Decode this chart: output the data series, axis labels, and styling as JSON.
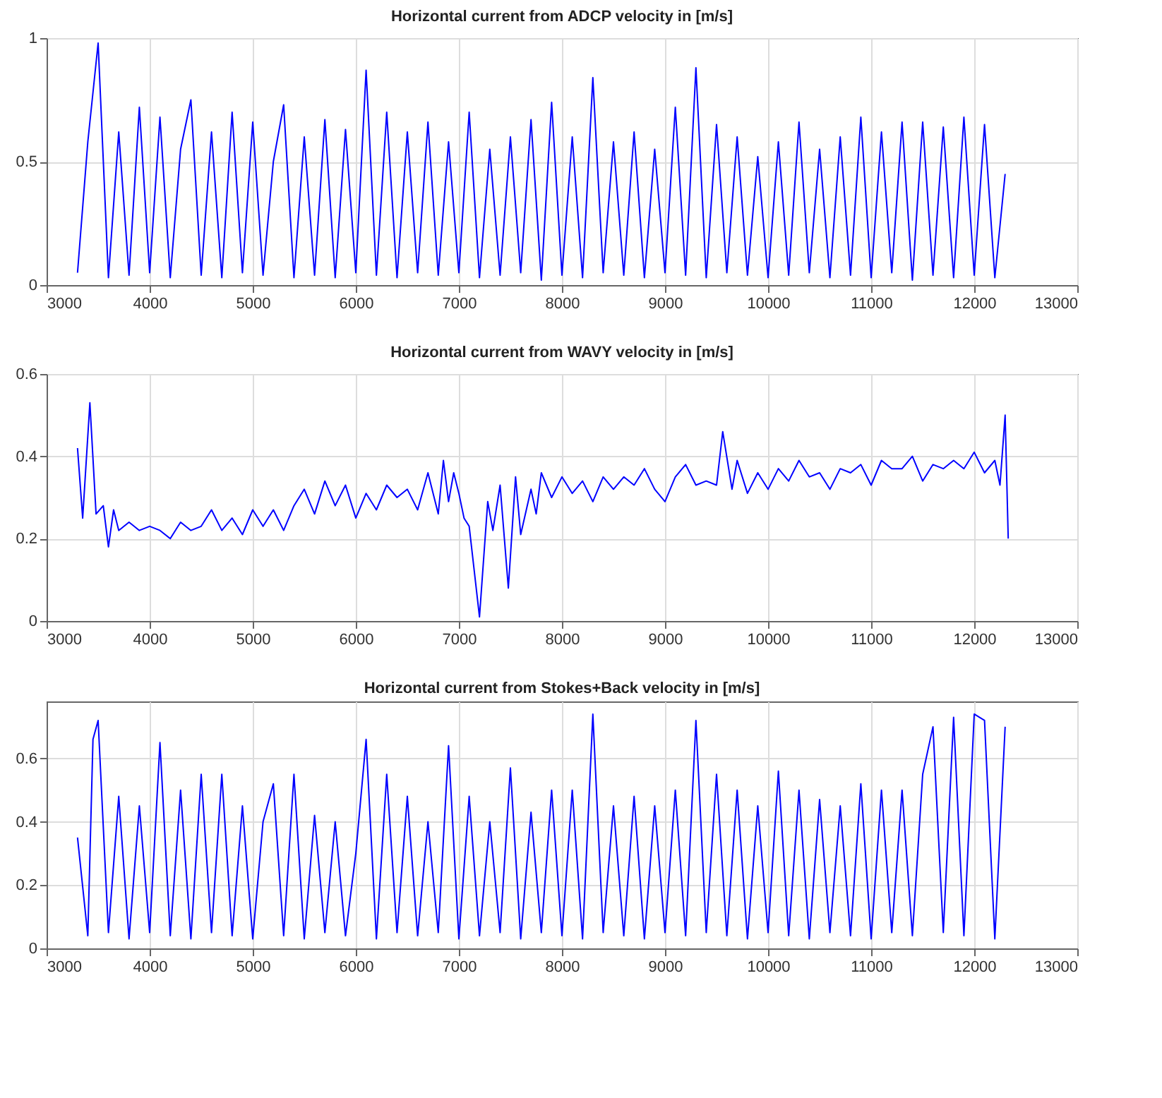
{
  "chart_data": [
    {
      "type": "line",
      "title": "Horizontal current from ADCP velocity in [m/s]",
      "x": [
        3300,
        3400,
        3500,
        3600,
        3700,
        3800,
        3900,
        4000,
        4100,
        4200,
        4300,
        4400,
        4500,
        4600,
        4700,
        4800,
        4900,
        5000,
        5100,
        5200,
        5300,
        5400,
        5500,
        5600,
        5700,
        5800,
        5900,
        6000,
        6100,
        6200,
        6300,
        6400,
        6500,
        6600,
        6700,
        6800,
        6900,
        7000,
        7100,
        7200,
        7300,
        7400,
        7500,
        7600,
        7700,
        7800,
        7900,
        8000,
        8100,
        8200,
        8300,
        8400,
        8500,
        8600,
        8700,
        8800,
        8900,
        9000,
        9100,
        9200,
        9300,
        9400,
        9500,
        9600,
        9700,
        9800,
        9900,
        10000,
        10100,
        10200,
        10300,
        10400,
        10500,
        10600,
        10700,
        10800,
        10900,
        11000,
        11100,
        11200,
        11300,
        11400,
        11500,
        11600,
        11700,
        11800,
        11900,
        12000,
        12100,
        12200,
        12300
      ],
      "series": [
        {
          "color": "#0000ff",
          "values": [
            0.05,
            0.58,
            0.98,
            0.03,
            0.62,
            0.04,
            0.72,
            0.05,
            0.68,
            0.03,
            0.55,
            0.75,
            0.04,
            0.62,
            0.03,
            0.7,
            0.05,
            0.66,
            0.04,
            0.5,
            0.73,
            0.03,
            0.6,
            0.04,
            0.67,
            0.03,
            0.63,
            0.05,
            0.87,
            0.04,
            0.7,
            0.03,
            0.62,
            0.05,
            0.66,
            0.04,
            0.58,
            0.05,
            0.7,
            0.03,
            0.55,
            0.04,
            0.6,
            0.05,
            0.67,
            0.02,
            0.74,
            0.04,
            0.6,
            0.03,
            0.84,
            0.05,
            0.58,
            0.04,
            0.62,
            0.03,
            0.55,
            0.05,
            0.72,
            0.04,
            0.88,
            0.03,
            0.65,
            0.05,
            0.6,
            0.04,
            0.52,
            0.03,
            0.58,
            0.04,
            0.66,
            0.05,
            0.55,
            0.03,
            0.6,
            0.04,
            0.68,
            0.03,
            0.62,
            0.05,
            0.66,
            0.02,
            0.66,
            0.04,
            0.64,
            0.03,
            0.68,
            0.04,
            0.65,
            0.03,
            0.45
          ]
        }
      ],
      "xlim": [
        3000,
        13000
      ],
      "xticks": [
        3000,
        4000,
        5000,
        6000,
        7000,
        8000,
        9000,
        10000,
        11000,
        12000,
        13000
      ],
      "ylim": [
        0,
        1
      ],
      "yticks": [
        0,
        0.5,
        1
      ],
      "grid": true
    },
    {
      "type": "line",
      "title": "Horizontal current from WAVY velocity in [m/s]",
      "x": [
        3300,
        3350,
        3420,
        3480,
        3550,
        3600,
        3650,
        3700,
        3800,
        3900,
        4000,
        4100,
        4200,
        4300,
        4400,
        4500,
        4600,
        4700,
        4800,
        4900,
        5000,
        5100,
        5200,
        5300,
        5400,
        5500,
        5600,
        5700,
        5800,
        5900,
        6000,
        6100,
        6200,
        6300,
        6400,
        6500,
        6600,
        6700,
        6800,
        6850,
        6900,
        6950,
        7000,
        7050,
        7100,
        7200,
        7280,
        7330,
        7400,
        7480,
        7550,
        7600,
        7700,
        7750,
        7800,
        7900,
        8000,
        8100,
        8200,
        8300,
        8400,
        8500,
        8600,
        8700,
        8800,
        8900,
        9000,
        9100,
        9200,
        9300,
        9400,
        9500,
        9560,
        9650,
        9700,
        9800,
        9900,
        10000,
        10100,
        10200,
        10300,
        10400,
        10500,
        10600,
        10700,
        10800,
        10900,
        11000,
        11100,
        11200,
        11300,
        11400,
        11500,
        11600,
        11700,
        11800,
        11900,
        12000,
        12100,
        12200,
        12250,
        12300,
        12330
      ],
      "series": [
        {
          "color": "#0000ff",
          "values": [
            0.42,
            0.25,
            0.53,
            0.26,
            0.28,
            0.18,
            0.27,
            0.22,
            0.24,
            0.22,
            0.23,
            0.22,
            0.2,
            0.24,
            0.22,
            0.23,
            0.27,
            0.22,
            0.25,
            0.21,
            0.27,
            0.23,
            0.27,
            0.22,
            0.28,
            0.32,
            0.26,
            0.34,
            0.28,
            0.33,
            0.25,
            0.31,
            0.27,
            0.33,
            0.3,
            0.32,
            0.27,
            0.36,
            0.26,
            0.39,
            0.29,
            0.36,
            0.31,
            0.25,
            0.23,
            0.01,
            0.29,
            0.22,
            0.33,
            0.08,
            0.35,
            0.21,
            0.32,
            0.26,
            0.36,
            0.3,
            0.35,
            0.31,
            0.34,
            0.29,
            0.35,
            0.32,
            0.35,
            0.33,
            0.37,
            0.32,
            0.29,
            0.35,
            0.38,
            0.33,
            0.34,
            0.33,
            0.46,
            0.32,
            0.39,
            0.31,
            0.36,
            0.32,
            0.37,
            0.34,
            0.39,
            0.35,
            0.36,
            0.32,
            0.37,
            0.36,
            0.38,
            0.33,
            0.39,
            0.37,
            0.37,
            0.4,
            0.34,
            0.38,
            0.37,
            0.39,
            0.37,
            0.41,
            0.36,
            0.39,
            0.33,
            0.5,
            0.2
          ]
        }
      ],
      "xlim": [
        3000,
        13000
      ],
      "xticks": [
        3000,
        4000,
        5000,
        6000,
        7000,
        8000,
        9000,
        10000,
        11000,
        12000,
        13000
      ],
      "ylim": [
        0,
        0.6
      ],
      "yticks": [
        0,
        0.2,
        0.4,
        0.6
      ],
      "grid": true
    },
    {
      "type": "line",
      "title": "Horizontal current from Stokes+Back velocity in [m/s]",
      "x": [
        3300,
        3400,
        3450,
        3500,
        3600,
        3700,
        3800,
        3900,
        4000,
        4100,
        4200,
        4300,
        4400,
        4500,
        4600,
        4700,
        4800,
        4900,
        5000,
        5100,
        5200,
        5300,
        5400,
        5500,
        5600,
        5700,
        5800,
        5900,
        6000,
        6100,
        6200,
        6300,
        6400,
        6500,
        6600,
        6700,
        6800,
        6900,
        7000,
        7100,
        7200,
        7300,
        7400,
        7500,
        7600,
        7700,
        7800,
        7900,
        8000,
        8100,
        8200,
        8300,
        8400,
        8500,
        8600,
        8700,
        8800,
        8900,
        9000,
        9100,
        9200,
        9300,
        9400,
        9500,
        9600,
        9700,
        9800,
        9900,
        10000,
        10100,
        10200,
        10300,
        10400,
        10500,
        10600,
        10700,
        10800,
        10900,
        11000,
        11100,
        11200,
        11300,
        11400,
        11500,
        11600,
        11700,
        11800,
        11900,
        12000,
        12100,
        12200,
        12300
      ],
      "series": [
        {
          "color": "#0000ff",
          "values": [
            0.35,
            0.04,
            0.66,
            0.72,
            0.05,
            0.48,
            0.03,
            0.45,
            0.05,
            0.65,
            0.04,
            0.5,
            0.03,
            0.55,
            0.05,
            0.55,
            0.04,
            0.45,
            0.03,
            0.4,
            0.52,
            0.04,
            0.55,
            0.03,
            0.42,
            0.05,
            0.4,
            0.04,
            0.3,
            0.66,
            0.03,
            0.55,
            0.05,
            0.48,
            0.04,
            0.4,
            0.05,
            0.64,
            0.03,
            0.48,
            0.04,
            0.4,
            0.05,
            0.57,
            0.03,
            0.43,
            0.05,
            0.5,
            0.04,
            0.5,
            0.03,
            0.74,
            0.05,
            0.45,
            0.04,
            0.48,
            0.03,
            0.45,
            0.05,
            0.5,
            0.04,
            0.72,
            0.05,
            0.55,
            0.04,
            0.5,
            0.03,
            0.45,
            0.05,
            0.56,
            0.04,
            0.5,
            0.03,
            0.47,
            0.05,
            0.45,
            0.04,
            0.52,
            0.03,
            0.5,
            0.05,
            0.5,
            0.04,
            0.55,
            0.7,
            0.05,
            0.73,
            0.04,
            0.74,
            0.72,
            0.03,
            0.7
          ]
        }
      ],
      "xlim": [
        3000,
        13000
      ],
      "xticks": [
        3000,
        4000,
        5000,
        6000,
        7000,
        8000,
        9000,
        10000,
        11000,
        12000,
        13000
      ],
      "ylim": [
        0,
        0.78
      ],
      "yticks": [
        0,
        0.2,
        0.4,
        0.6
      ],
      "grid": true
    }
  ]
}
